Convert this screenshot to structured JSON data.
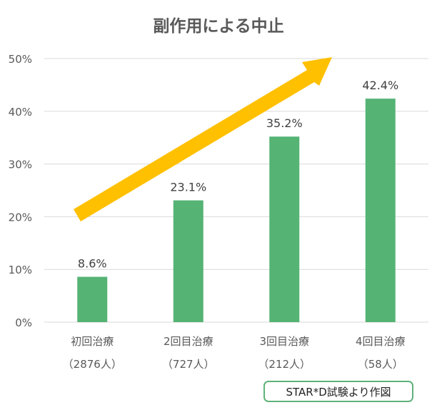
{
  "chart_data": {
    "type": "bar",
    "title": "副作用による中止",
    "categories": [
      "初回治療",
      "2回目治療",
      "3回目治療",
      "4回目治療"
    ],
    "category_sublabels": [
      "（2876人）",
      "（727人）",
      "（212人）",
      "（58人）"
    ],
    "values": [
      8.6,
      23.1,
      35.2,
      42.4
    ],
    "value_labels": [
      "8.6%",
      "23.1%",
      "35.2%",
      "42.4%"
    ],
    "yticks": [
      "0%",
      "10%",
      "20%",
      "30%",
      "40%",
      "50%"
    ],
    "ylim": [
      0,
      50
    ],
    "grid": true,
    "legend": "none",
    "annotation": "upward-trend-arrow",
    "colors": {
      "bar": "#55b374",
      "arrow": "#ffc000",
      "grid": "#d9d9d9",
      "title": "#595959",
      "tick": "#595959",
      "label": "#404040"
    }
  },
  "source_note": "STAR*D試験より作図"
}
